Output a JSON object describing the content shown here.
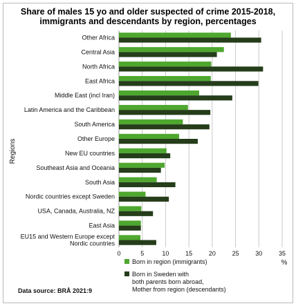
{
  "chart_data": {
    "type": "bar",
    "orientation": "horizontal",
    "title": "Share of males 15 yo and older suspected of crime 2015-2018, immigrants and descendants by region, percentages",
    "title_lines": [
      "Share of males 15 yo and older suspected of crime 2015-2018,",
      "immigrants and descendants by region, percentages"
    ],
    "ylabel": "Regions",
    "xlabel": "%",
    "xlim": [
      0,
      35
    ],
    "xticks": [
      0,
      5,
      10,
      15,
      20,
      25,
      30,
      35
    ],
    "grid": "vertical",
    "categories": [
      "Other Africa",
      "Central Asia",
      "North Africa",
      "East Africa",
      "Middle East (incl Iran)",
      "Latin America and the Caribbean",
      "South America",
      "Other Europe",
      "New EU countries",
      "Southeast Asia and Oceania",
      "South Asia",
      "Nordic countries except Sweden",
      "USA, Canada, Australia, NZ",
      "East Asia",
      "EU15 and Western Europe except Nordic countries"
    ],
    "category_lines": [
      [
        "Other Africa"
      ],
      [
        "Central Asia"
      ],
      [
        "North Africa"
      ],
      [
        "East Africa"
      ],
      [
        "Middle East (incl Iran)"
      ],
      [
        "Latin America and the Caribbean"
      ],
      [
        "South America"
      ],
      [
        "Other Europe"
      ],
      [
        "New EU countries"
      ],
      [
        "Southeast Asia and Oceania"
      ],
      [
        "South Asia"
      ],
      [
        "Nordic countries except Sweden"
      ],
      [
        "USA, Canada, Australia, NZ"
      ],
      [
        "East Asia"
      ],
      [
        "EU15 and Western Europe except",
        "Nordic countries"
      ]
    ],
    "series": [
      {
        "name": "Born in region (immigrants)",
        "color": "#4ea72e",
        "values": [
          24.0,
          22.5,
          19.8,
          19.7,
          17.2,
          14.8,
          13.7,
          12.9,
          10.2,
          9.8,
          8.1,
          5.7,
          4.8,
          4.7,
          4.6
        ]
      },
      {
        "name": "Born in Sweden with both parents born abroad, Mother from region (descendants)",
        "name_lines": [
          "Born in Sweden with",
          "both parents born abroad,",
          "Mother from region (descendants)"
        ],
        "color": "#253d1a",
        "values": [
          30.5,
          21.0,
          30.9,
          29.9,
          24.3,
          19.6,
          19.4,
          16.9,
          11.0,
          9.0,
          12.1,
          10.7,
          7.3,
          4.7,
          8.0
        ]
      }
    ],
    "legend_position": "bottom",
    "source": "Data source: BRÅ 2021:9"
  }
}
